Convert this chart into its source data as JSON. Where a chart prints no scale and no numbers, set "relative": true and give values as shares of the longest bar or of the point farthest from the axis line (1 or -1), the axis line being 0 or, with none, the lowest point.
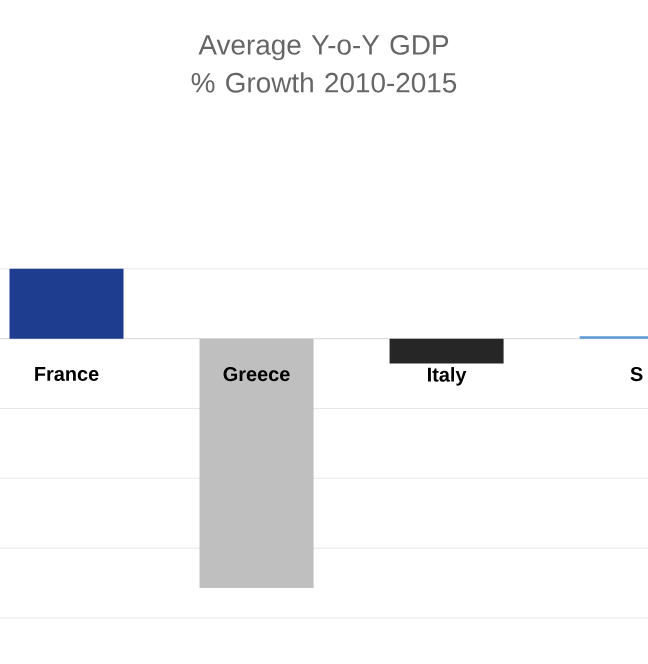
{
  "chart_data": {
    "type": "bar",
    "title": "Average Y-o-Y GDP % Growth 2010-2015",
    "categories": [
      "France",
      "Greece",
      "Italy",
      "S"
    ],
    "values": [
      0.28,
      -1,
      -0.1,
      0.01
    ],
    "colors": [
      "#1f3d8f",
      "#bfbfbf",
      "#262626",
      "#5b9bd5"
    ],
    "relative": true,
    "grid": "y"
  }
}
